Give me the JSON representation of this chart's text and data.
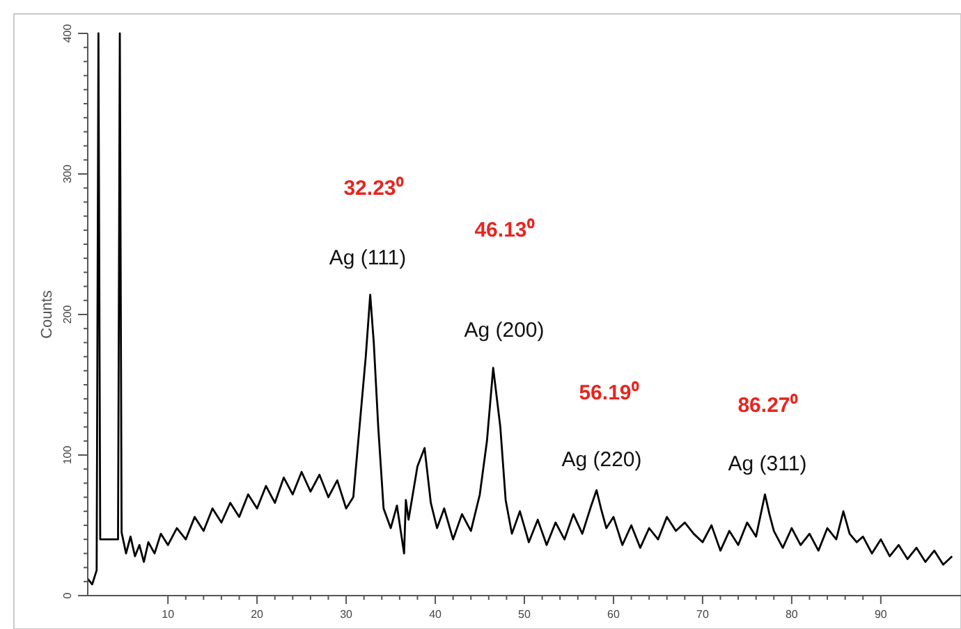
{
  "chart_data": {
    "type": "line",
    "ylabel": "Counts",
    "x": [
      1,
      1.5,
      2,
      2.2,
      2.4,
      4.4,
      4.6,
      4.8,
      5.3,
      5.8,
      6.3,
      6.8,
      7.3,
      7.8,
      8.5,
      9.2,
      10,
      11,
      12,
      13,
      14,
      15,
      16,
      17,
      18,
      19,
      20,
      21,
      22,
      23,
      24,
      25,
      26,
      27,
      28,
      29,
      30,
      30.8,
      31.5,
      32.2,
      32.7,
      33.1,
      33.6,
      34.2,
      35,
      35.7,
      36.5,
      36.7,
      37,
      38,
      38.8,
      39.5,
      40.2,
      41,
      42,
      43,
      44,
      45,
      45.8,
      46.5,
      47.3,
      47.9,
      48.6,
      49.5,
      50.5,
      51.5,
      52.5,
      53.5,
      54.5,
      55.5,
      56.5,
      57.5,
      58.1,
      58.6,
      59.2,
      60,
      61,
      62,
      63,
      64,
      65,
      66,
      67,
      68,
      69,
      70,
      71,
      72,
      73,
      74,
      75,
      76,
      77,
      77.5,
      78,
      79,
      80,
      81,
      82,
      83,
      84,
      85,
      85.8,
      86.5,
      87.3,
      88,
      89,
      90,
      91,
      92,
      93,
      94,
      95,
      96,
      97,
      98
    ],
    "values": [
      12,
      8,
      18,
      400,
      40,
      40,
      400,
      45,
      30,
      42,
      28,
      36,
      24,
      38,
      30,
      44,
      36,
      48,
      40,
      56,
      46,
      62,
      52,
      66,
      56,
      72,
      62,
      78,
      66,
      84,
      72,
      88,
      74,
      86,
      70,
      82,
      62,
      70,
      120,
      170,
      214,
      180,
      120,
      62,
      48,
      64,
      30,
      68,
      54,
      92,
      105,
      66,
      48,
      62,
      40,
      58,
      46,
      72,
      110,
      162,
      120,
      68,
      44,
      60,
      38,
      54,
      36,
      52,
      40,
      58,
      44,
      64,
      75,
      62,
      48,
      56,
      36,
      50,
      34,
      48,
      40,
      56,
      46,
      52,
      44,
      38,
      50,
      32,
      46,
      36,
      52,
      42,
      72,
      58,
      46,
      34,
      48,
      36,
      44,
      32,
      48,
      40,
      60,
      44,
      38,
      42,
      30,
      40,
      28,
      36,
      26,
      34,
      24,
      32,
      22,
      28
    ],
    "color": "#000000",
    "xlim": [
      1,
      99
    ],
    "ylim": [
      0,
      400
    ],
    "xticks": [
      10,
      20,
      30,
      40,
      50,
      60,
      70,
      80,
      90
    ],
    "yticks": [
      0,
      100,
      200,
      300,
      400
    ],
    "grid": false,
    "annotations": [
      "32.23⁰",
      "Ag (111)",
      "46.13⁰",
      "Ag (200)",
      "56.19⁰",
      "Ag (220)",
      "86.27⁰",
      "Ag (311)"
    ]
  }
}
